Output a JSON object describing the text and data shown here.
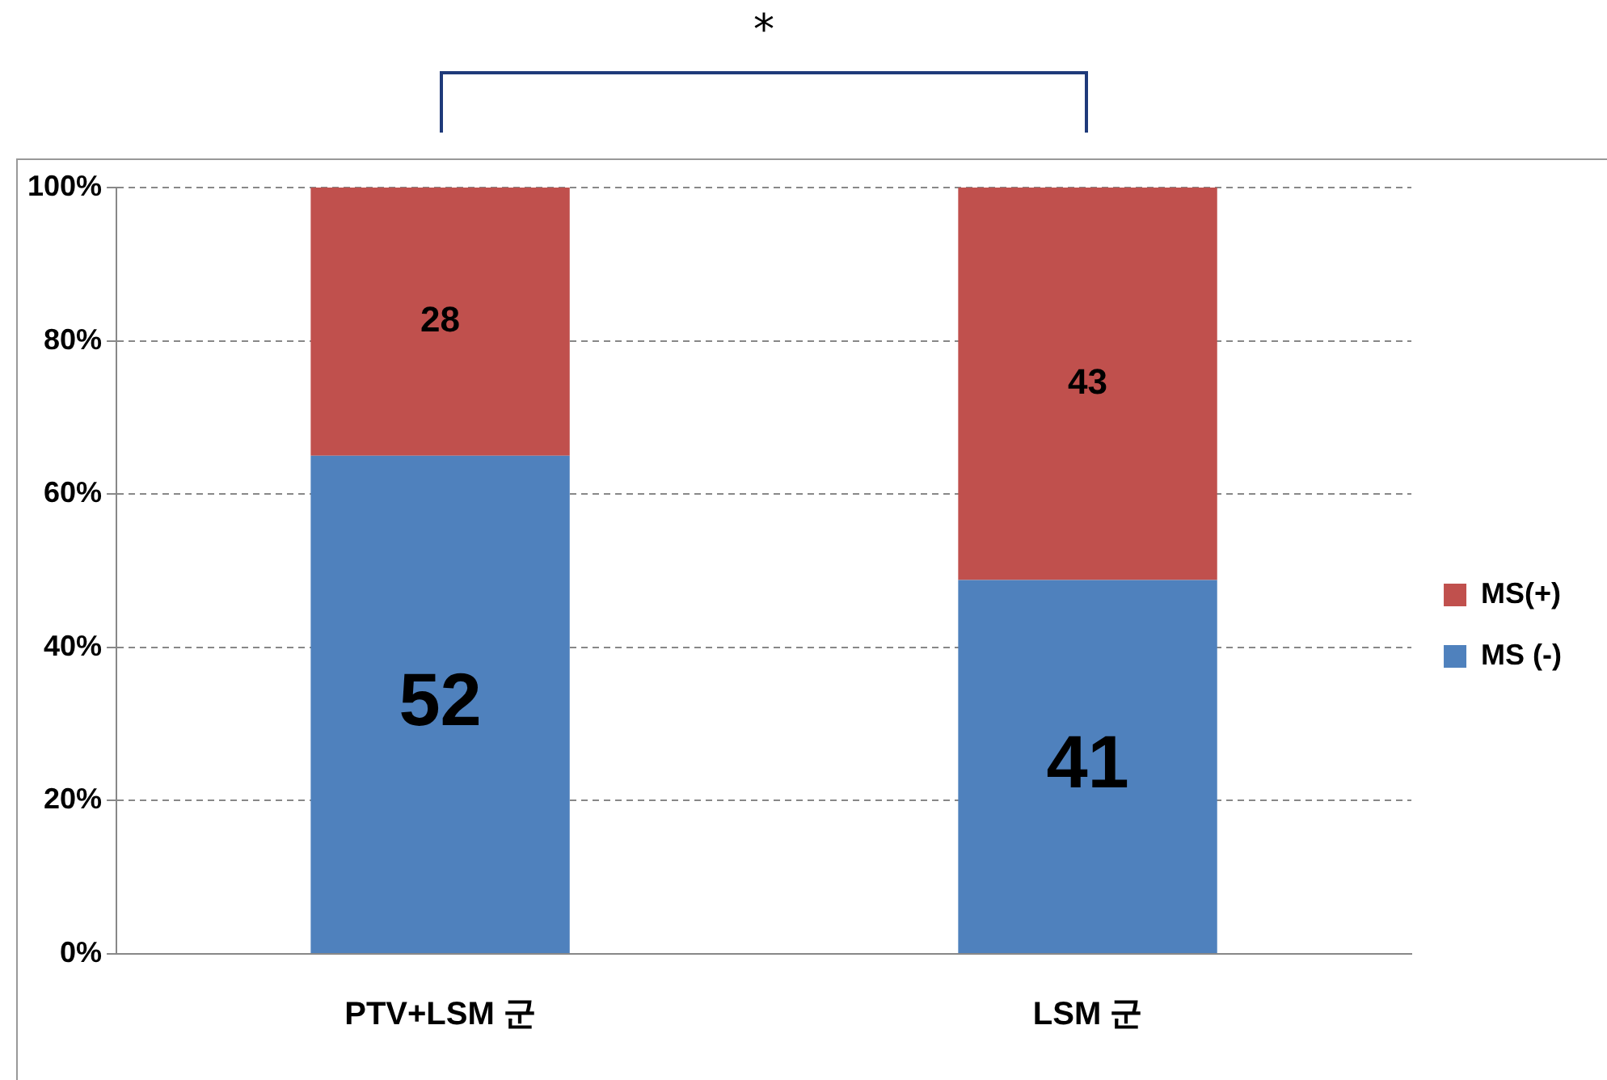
{
  "chart_data": {
    "type": "bar",
    "stacked": true,
    "categories": [
      "PTV+LSM 군",
      "LSM 군"
    ],
    "series": [
      {
        "name": "MS (-)",
        "color": "#4f81bd",
        "values": [
          65,
          48.8
        ]
      },
      {
        "name": "MS(+)",
        "color": "#c0504d",
        "values": [
          35,
          51.2
        ]
      }
    ],
    "ylim": [
      0,
      100
    ],
    "yticks": [
      {
        "value": 0,
        "label": "0%"
      },
      {
        "value": 20,
        "label": "20%"
      },
      {
        "value": 40,
        "label": "40%"
      },
      {
        "value": 60,
        "label": "60%"
      },
      {
        "value": 80,
        "label": "80%"
      },
      {
        "value": 100,
        "label": "100%"
      }
    ],
    "grid": "y",
    "legend": "right",
    "annotations": [
      "*",
      "52",
      "41",
      "28",
      "43"
    ]
  }
}
